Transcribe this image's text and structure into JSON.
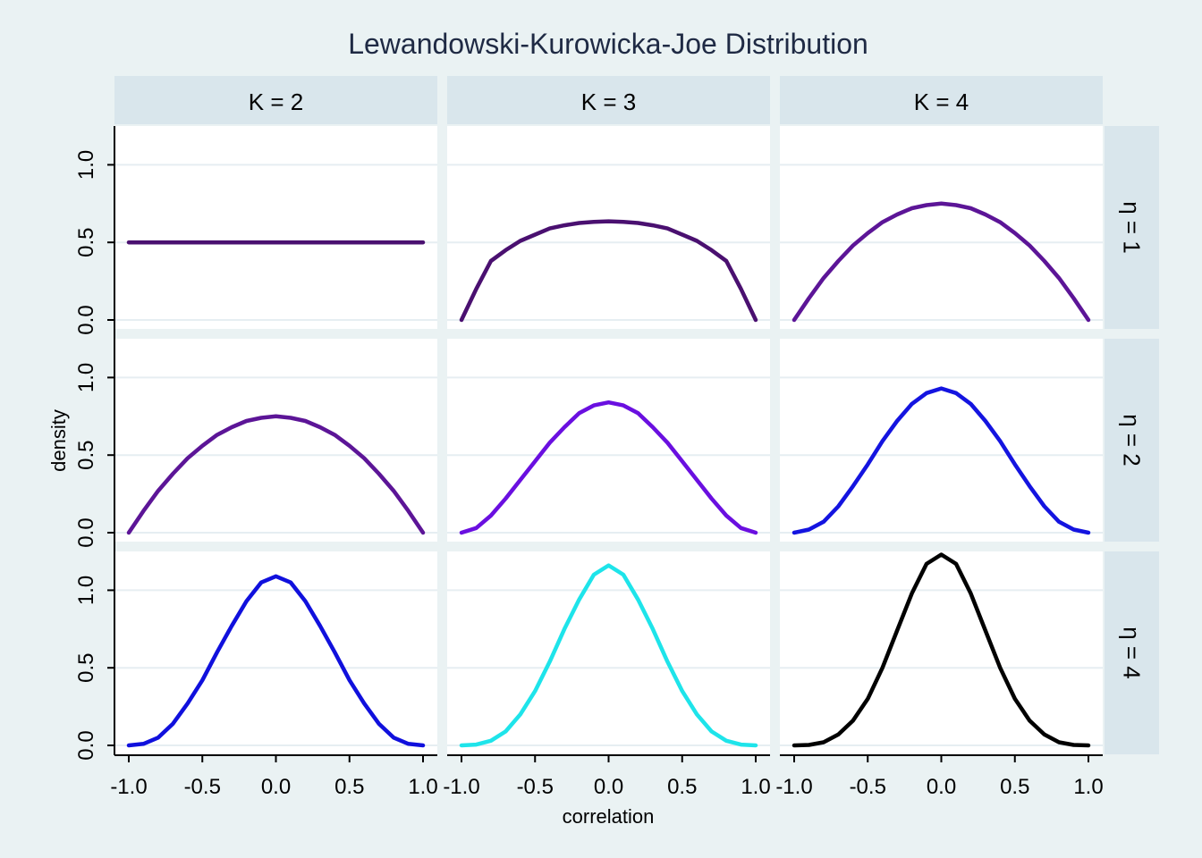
{
  "chart_data": {
    "type": "line",
    "title": "Lewandowski-Kurowicka-Joe Distribution",
    "xlabel": "correlation",
    "ylabel": "density",
    "xlim": [
      -1.0,
      1.0
    ],
    "ylim": [
      0.0,
      1.25
    ],
    "x_ticks": [
      "-1.0",
      "-0.5",
      "0.0",
      "0.5",
      "1.0"
    ],
    "y_ticks": [
      "0.0",
      "0.5",
      "1.0"
    ],
    "grid": true,
    "col_facets": [
      "K = 2",
      "K = 3",
      "K = 4"
    ],
    "row_facets": [
      "η = 1",
      "η = 2",
      "η = 4"
    ],
    "x": [
      -1.0,
      -0.9,
      -0.8,
      -0.7,
      -0.6,
      -0.5,
      -0.4,
      -0.3,
      -0.2,
      -0.1,
      0.0,
      0.1,
      0.2,
      0.3,
      0.4,
      0.5,
      0.6,
      0.7,
      0.8,
      0.9,
      1.0
    ],
    "panels": [
      {
        "col": "K = 2",
        "row": "η = 1",
        "color": "#4a1070",
        "values": [
          0.5,
          0.5,
          0.5,
          0.5,
          0.5,
          0.5,
          0.5,
          0.5,
          0.5,
          0.5,
          0.5,
          0.5,
          0.5,
          0.5,
          0.5,
          0.5,
          0.5,
          0.5,
          0.5,
          0.5,
          0.5
        ]
      },
      {
        "col": "K = 3",
        "row": "η = 1",
        "color": "#4a1070",
        "values": [
          0.0,
          0.2,
          0.38,
          0.45,
          0.51,
          0.55,
          0.59,
          0.61,
          0.625,
          0.632,
          0.636,
          0.632,
          0.625,
          0.61,
          0.59,
          0.55,
          0.51,
          0.45,
          0.38,
          0.2,
          0.0
        ]
      },
      {
        "col": "K = 4",
        "row": "η = 1",
        "color": "#5c1597",
        "values": [
          0.0,
          0.14,
          0.27,
          0.38,
          0.48,
          0.56,
          0.63,
          0.68,
          0.72,
          0.74,
          0.75,
          0.74,
          0.72,
          0.68,
          0.63,
          0.56,
          0.48,
          0.38,
          0.27,
          0.14,
          0.0
        ]
      },
      {
        "col": "K = 2",
        "row": "η = 2",
        "color": "#5c1597",
        "values": [
          0.0,
          0.14,
          0.27,
          0.38,
          0.48,
          0.56,
          0.63,
          0.68,
          0.72,
          0.74,
          0.75,
          0.74,
          0.72,
          0.68,
          0.63,
          0.56,
          0.48,
          0.38,
          0.27,
          0.14,
          0.0
        ]
      },
      {
        "col": "K = 3",
        "row": "η = 2",
        "color": "#6a0fe0",
        "values": [
          0.0,
          0.03,
          0.11,
          0.22,
          0.34,
          0.46,
          0.58,
          0.68,
          0.77,
          0.82,
          0.84,
          0.82,
          0.77,
          0.68,
          0.58,
          0.46,
          0.34,
          0.22,
          0.11,
          0.03,
          0.0
        ]
      },
      {
        "col": "K = 4",
        "row": "η = 2",
        "color": "#1414e0",
        "values": [
          0.0,
          0.02,
          0.07,
          0.17,
          0.3,
          0.44,
          0.59,
          0.72,
          0.83,
          0.9,
          0.93,
          0.9,
          0.83,
          0.72,
          0.59,
          0.44,
          0.3,
          0.17,
          0.07,
          0.02,
          0.0
        ]
      },
      {
        "col": "K = 2",
        "row": "η = 4",
        "color": "#1010dd",
        "values": [
          0.0,
          0.01,
          0.05,
          0.14,
          0.27,
          0.42,
          0.6,
          0.77,
          0.93,
          1.05,
          1.09,
          1.05,
          0.93,
          0.77,
          0.6,
          0.42,
          0.27,
          0.14,
          0.05,
          0.01,
          0.0
        ]
      },
      {
        "col": "K = 3",
        "row": "η = 4",
        "color": "#1ee4ea",
        "values": [
          0.0,
          0.005,
          0.03,
          0.09,
          0.2,
          0.35,
          0.54,
          0.75,
          0.94,
          1.1,
          1.16,
          1.1,
          0.94,
          0.75,
          0.54,
          0.35,
          0.2,
          0.09,
          0.03,
          0.005,
          0.0
        ]
      },
      {
        "col": "K = 4",
        "row": "η = 4",
        "color": "#000000",
        "values": [
          0.0,
          0.003,
          0.02,
          0.07,
          0.16,
          0.3,
          0.5,
          0.74,
          0.98,
          1.17,
          1.23,
          1.17,
          0.98,
          0.74,
          0.5,
          0.3,
          0.16,
          0.07,
          0.02,
          0.003,
          0.0
        ]
      }
    ]
  }
}
